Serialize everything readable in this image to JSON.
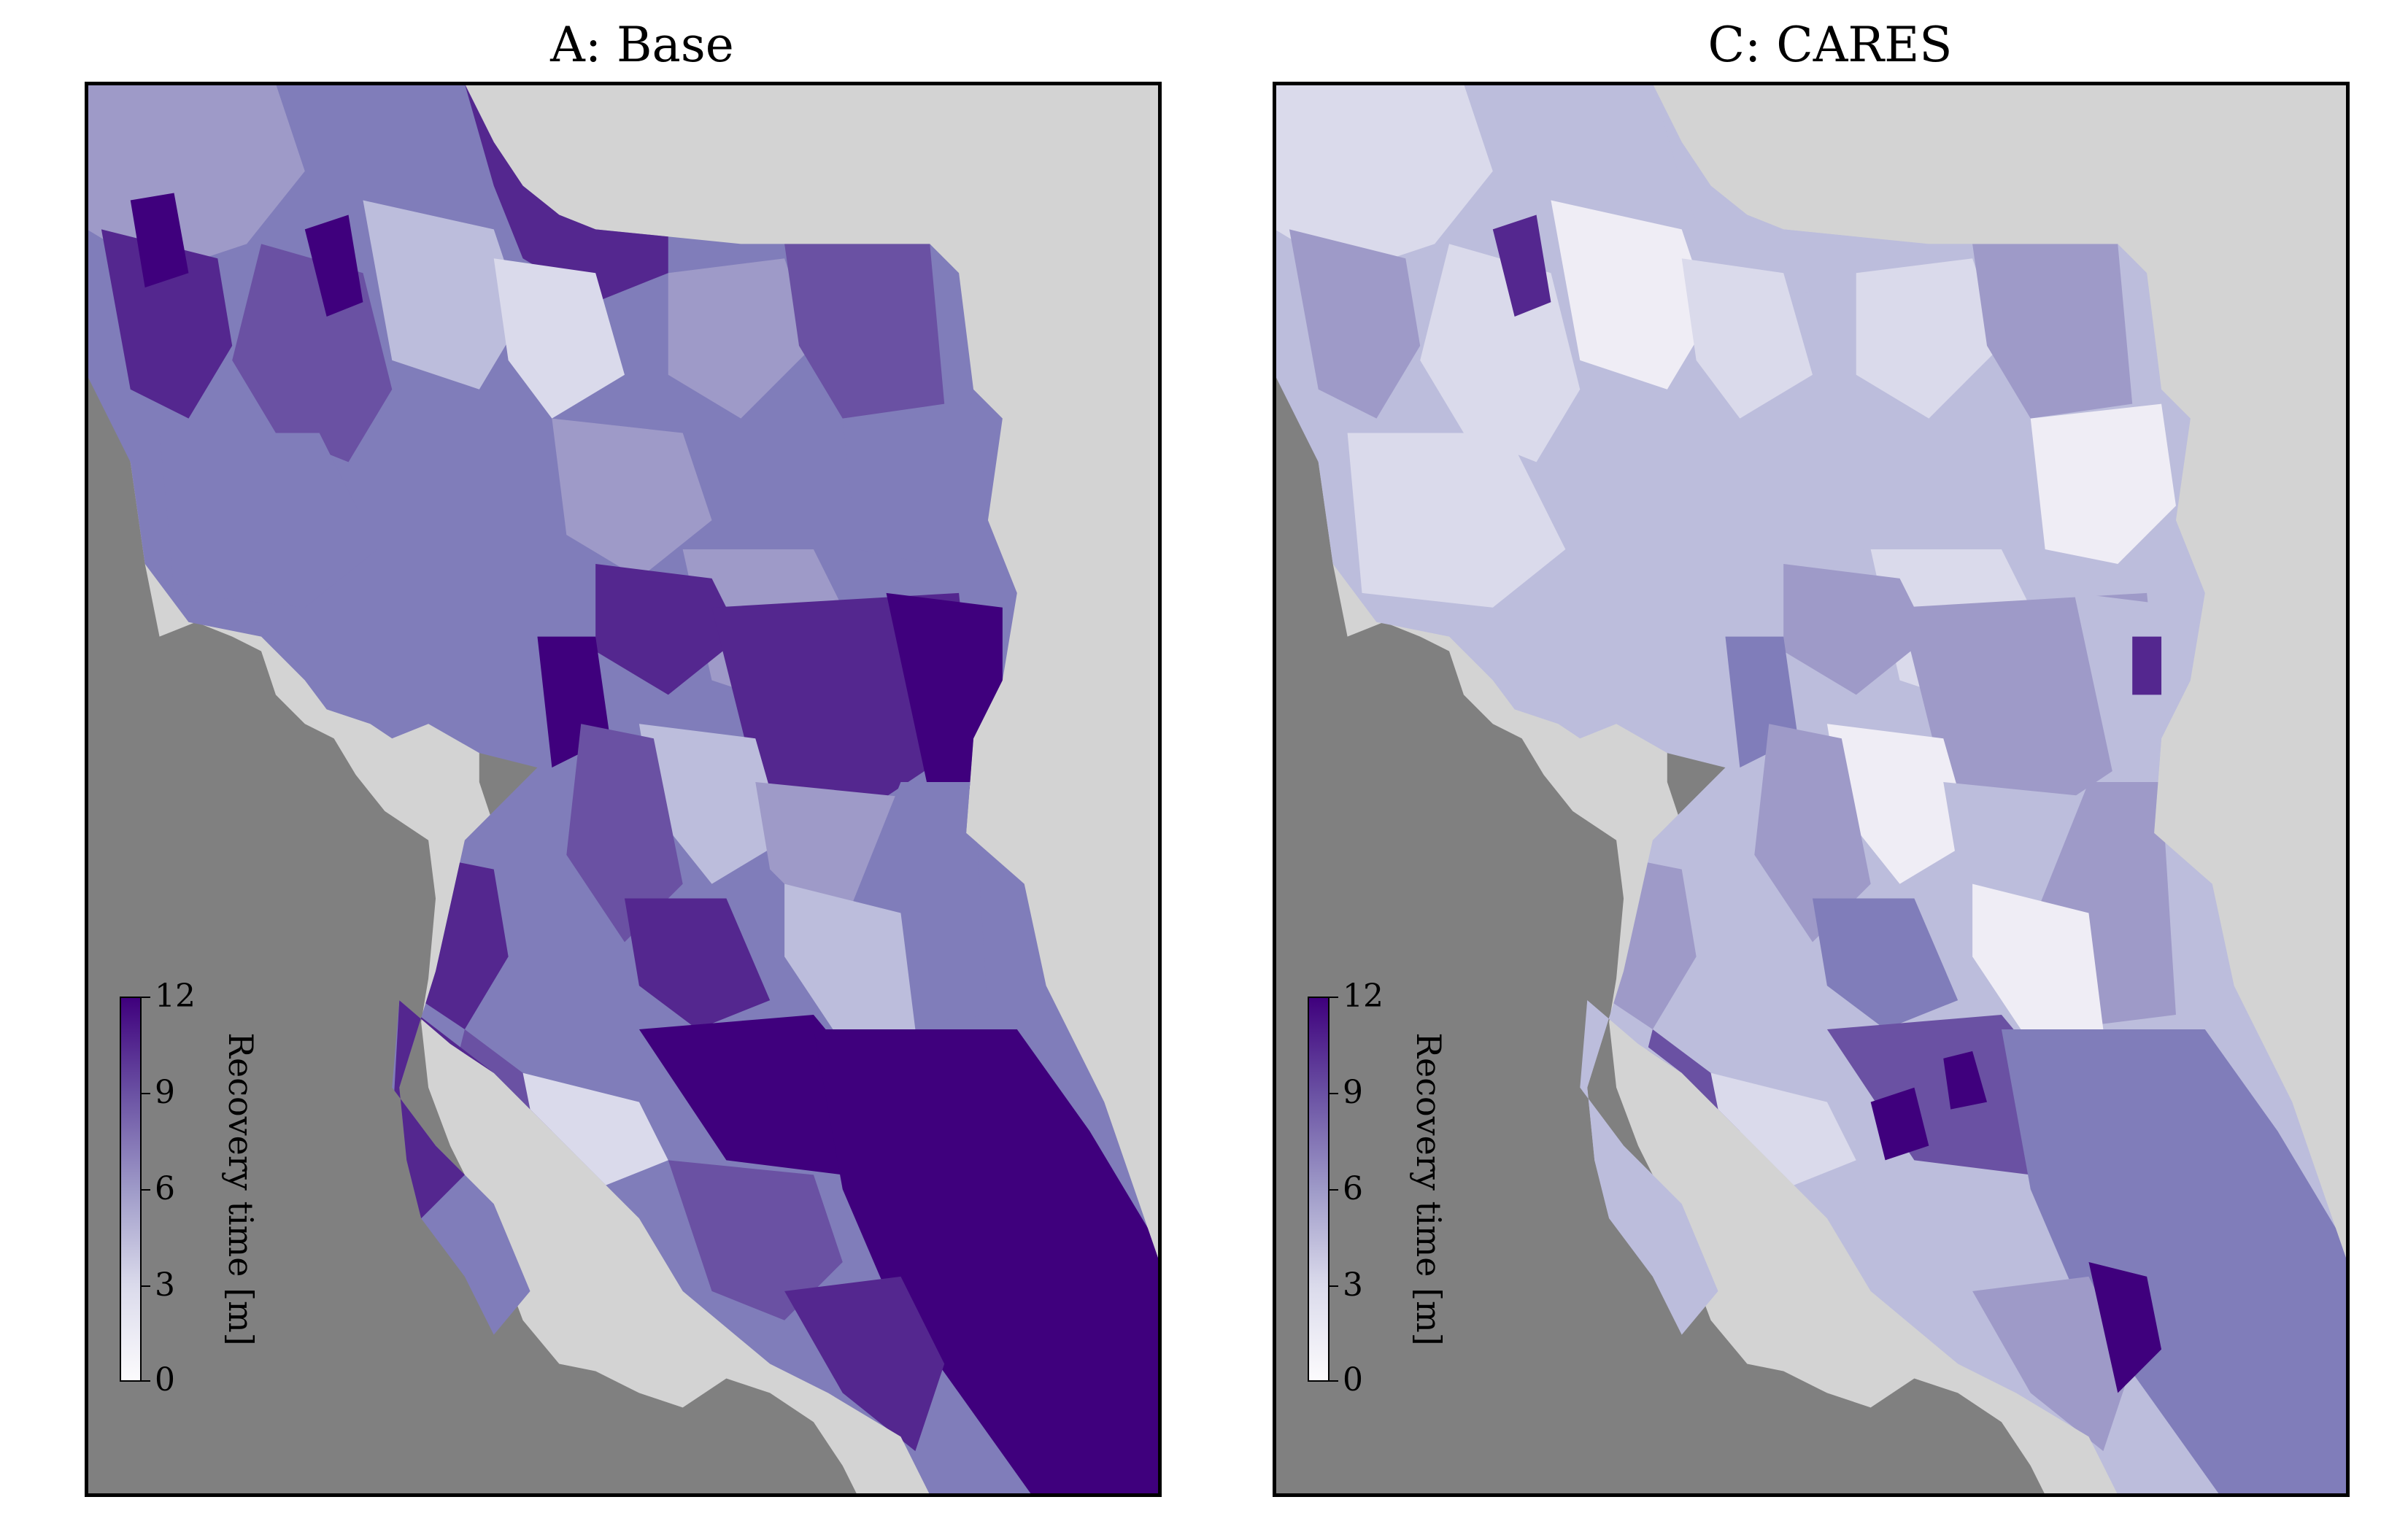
{
  "panels": [
    {
      "title": "A: Base",
      "colorbar": {
        "label": "Recovery time [m]",
        "ticks": [
          "12",
          "9",
          "6",
          "3",
          "0"
        ]
      }
    },
    {
      "title": "C: CARES",
      "colorbar": {
        "label": "Recovery time [m]",
        "ticks": [
          "12",
          "9",
          "6",
          "3",
          "0"
        ]
      }
    }
  ],
  "colors": {
    "ocean": "#808080",
    "land_background": "#d3d3d3",
    "colormap_low": "#fcfbfd",
    "colormap_mid": "#807dba",
    "colormap_high": "#3f007d"
  },
  "colorbar_range": [
    0,
    12
  ]
}
